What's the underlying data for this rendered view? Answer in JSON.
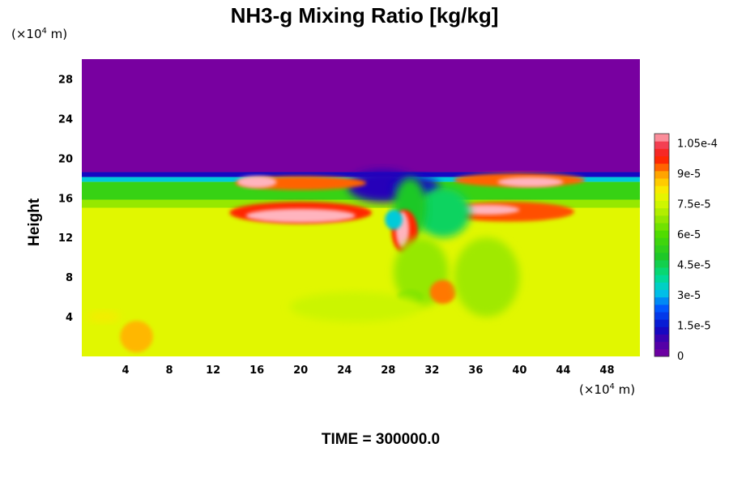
{
  "chart_data": {
    "type": "heatmap",
    "title": "NH3-g Mixing Ratio [kg/kg]",
    "ylabel": "Height",
    "y_unit_prefix": "(×10",
    "y_unit_exp": "4",
    "y_unit_suffix": " m)",
    "x_unit_prefix": "(×10",
    "x_unit_exp": "4",
    "x_unit_suffix": " m)",
    "xlim": [
      0,
      51
    ],
    "ylim": [
      0,
      30
    ],
    "xticks": [
      4,
      8,
      12,
      16,
      20,
      24,
      28,
      32,
      36,
      40,
      44,
      48
    ],
    "yticks": [
      4,
      8,
      12,
      16,
      20,
      24,
      28
    ],
    "colorbar": {
      "min": 0,
      "max": 0.00011,
      "ticks": [
        0,
        1.5e-05,
        3e-05,
        4.5e-05,
        6e-05,
        7.5e-05,
        9e-05,
        0.000105
      ],
      "tick_labels": [
        "0",
        "1.5e-5",
        "3e-5",
        "4.5e-5",
        "6e-5",
        "7.5e-5",
        "9e-5",
        "1.05e-4"
      ]
    },
    "field_regions": [
      {
        "description": "upper layer",
        "value": 0
      },
      {
        "description": "lower layer",
        "value": 7.8e-05
      },
      {
        "description": "mid band",
        "value": 5.5e-05
      },
      {
        "description": "peak features",
        "value": 0.00011
      }
    ],
    "time_label": "TIME = 300000.0"
  }
}
